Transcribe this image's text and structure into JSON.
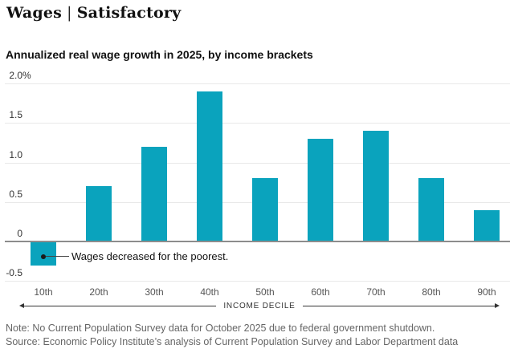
{
  "header": {
    "section": "Wages",
    "separator": "|",
    "edition": "Satisfactory"
  },
  "chart_data": {
    "type": "bar",
    "title": "Annualized real wage growth in 2025, by income brackets",
    "categories": [
      "10th",
      "20th",
      "30th",
      "40th",
      "50th",
      "60th",
      "70th",
      "80th",
      "90th"
    ],
    "values": [
      -0.3,
      0.7,
      1.2,
      1.9,
      0.8,
      1.3,
      1.4,
      0.8,
      0.4
    ],
    "xlabel": "INCOME DECILE",
    "ylabel": "",
    "ylim": [
      -0.5,
      2.0
    ],
    "yticks": [
      {
        "value": 2.0,
        "label": "2.0",
        "suffix": "%"
      },
      {
        "value": 1.5,
        "label": "1.5",
        "suffix": ""
      },
      {
        "value": 1.0,
        "label": "1.0",
        "suffix": ""
      },
      {
        "value": 0.5,
        "label": "0.5",
        "suffix": ""
      },
      {
        "value": 0,
        "label": "0",
        "suffix": ""
      },
      {
        "value": -0.5,
        "label": "-0.5",
        "suffix": ""
      }
    ],
    "grid": true,
    "legend": "none",
    "bar_color": "#0aa3bd",
    "annotation": {
      "text": "Wages decreased for the poorest.",
      "target_category": "10th"
    }
  },
  "footer": {
    "note": "Note: No Current Population Survey data for October 2025 due to federal government shutdown.",
    "source": "Source: Economic Policy Institute’s analysis of Current Population Survey and Labor Department data"
  }
}
